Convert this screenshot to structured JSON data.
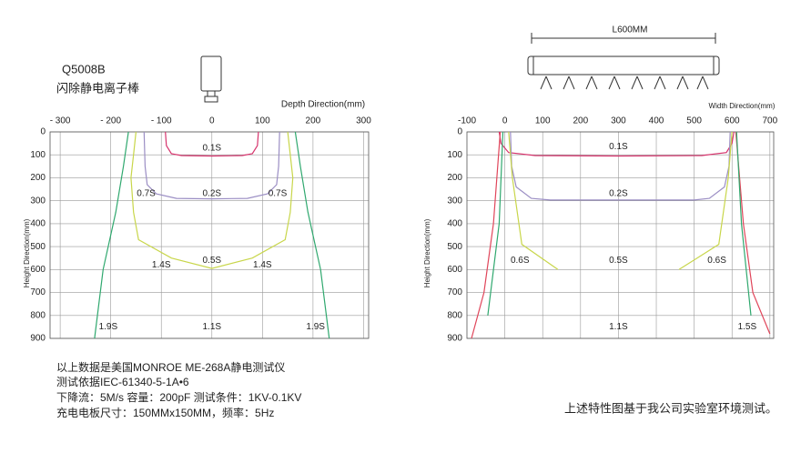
{
  "product": {
    "model": "Q5008B",
    "name": "闪除静电离子棒"
  },
  "dimension": "L600MM",
  "notes": [
    "以上数据是美国MONROE ME-268A静电测试仪",
    "测试依据IEC-61340-5-1A•6",
    "下降流：5M/s 容量：200pF 测试条件：1KV-0.1KV",
    "充电电板尺寸：150MMx150MM，频率：5Hz"
  ],
  "footer": "上述特性图基于我公司实验室环境测试。",
  "chart_data": [
    {
      "type": "line",
      "xlabel": "Depth Direction(mm)",
      "ylabel": "Height Direction(mm)",
      "xlim": [
        -320,
        310
      ],
      "xticks": [
        {
          "value": -300,
          "label": "- 300"
        },
        {
          "value": -200,
          "label": "- 200"
        },
        {
          "value": -100,
          "label": "- 100"
        },
        0,
        100,
        200,
        300
      ],
      "ylim": [
        900,
        0
      ],
      "yticks": [
        0,
        100,
        200,
        300,
        400,
        500,
        600,
        700,
        800,
        900
      ],
      "grid": true,
      "series": [
        {
          "color": "#d6336c",
          "x": [
            -92,
            -90,
            -80,
            -60,
            0,
            60,
            80,
            90,
            92
          ],
          "values": [
            0,
            60,
            95,
            103,
            105,
            103,
            95,
            60,
            0
          ]
        },
        {
          "color": "#9b8ec4",
          "x": [
            -134,
            -132,
            -128,
            -110,
            -70,
            0,
            70,
            110,
            128,
            132,
            134
          ],
          "values": [
            0,
            150,
            230,
            270,
            290,
            292,
            290,
            270,
            230,
            150,
            0
          ]
        },
        {
          "color": "#c8d64a",
          "x": [
            -150,
            -155,
            -160,
            -155,
            -145,
            -80,
            0,
            80,
            145,
            155,
            160,
            155,
            150
          ],
          "values": [
            0,
            100,
            200,
            350,
            470,
            550,
            595,
            550,
            470,
            350,
            200,
            100,
            0
          ]
        },
        {
          "color": "#2fa86e",
          "x": [
            -165,
            -175,
            -190,
            -215,
            -232
          ],
          "values": [
            0,
            150,
            350,
            600,
            900
          ]
        },
        {
          "color": "#2fa86e",
          "x": [
            165,
            175,
            190,
            215,
            232
          ],
          "values": [
            0,
            150,
            350,
            600,
            900
          ]
        }
      ],
      "annotations": [
        {
          "text": "0.1S",
          "x": 0,
          "y": 70
        },
        {
          "text": "0.7S",
          "x": -130,
          "y": 270
        },
        {
          "text": "0.2S",
          "x": 0,
          "y": 270
        },
        {
          "text": "0.7S",
          "x": 130,
          "y": 270
        },
        {
          "text": "1.4S",
          "x": -100,
          "y": 580
        },
        {
          "text": "0.5S",
          "x": 0,
          "y": 560
        },
        {
          "text": "1.4S",
          "x": 100,
          "y": 580
        },
        {
          "text": "1.9S",
          "x": -205,
          "y": 850
        },
        {
          "text": "1.1S",
          "x": 0,
          "y": 850
        },
        {
          "text": "1.9S",
          "x": 205,
          "y": 850
        }
      ]
    },
    {
      "type": "line",
      "xlabel": "Width Direction(mm)",
      "ylabel": "Height Direction(mm)",
      "xlim": [
        -100,
        710
      ],
      "xticks": [
        -100,
        0,
        100,
        200,
        300,
        400,
        500,
        600,
        700
      ],
      "ylim": [
        900,
        0
      ],
      "yticks": [
        0,
        100,
        200,
        300,
        400,
        500,
        600,
        700,
        800,
        900
      ],
      "grid": true,
      "series": [
        {
          "color": "#d6336c",
          "x": [
            -15,
            -10,
            10,
            80,
            300,
            520,
            585,
            600,
            605
          ],
          "values": [
            0,
            50,
            90,
            103,
            105,
            103,
            90,
            50,
            0
          ]
        },
        {
          "color": "#9b8ec4",
          "x": [
            15,
            18,
            30,
            70,
            120,
            500,
            540,
            580,
            592,
            595
          ],
          "values": [
            0,
            150,
            240,
            290,
            297,
            297,
            290,
            240,
            150,
            0
          ]
        },
        {
          "color": "#c8d64a",
          "x": [
            10,
            20,
            45,
            140
          ],
          "values": [
            0,
            200,
            490,
            600
          ]
        },
        {
          "color": "#c8d64a",
          "x": [
            600,
            590,
            565,
            460
          ],
          "values": [
            0,
            200,
            490,
            600
          ]
        },
        {
          "color": "#e0455a",
          "x": [
            -12,
            -30,
            -55,
            -88
          ],
          "values": [
            0,
            400,
            700,
            900
          ]
        },
        {
          "color": "#e0455a",
          "x": [
            610,
            630,
            655,
            700
          ],
          "values": [
            0,
            400,
            700,
            880
          ]
        },
        {
          "color": "#2fa86e",
          "x": [
            -5,
            -15,
            -45
          ],
          "values": [
            0,
            400,
            800
          ]
        },
        {
          "color": "#2fa86e",
          "x": [
            612,
            625,
            650
          ],
          "values": [
            0,
            400,
            800
          ]
        }
      ],
      "annotations": [
        {
          "text": "0.1S",
          "x": 300,
          "y": 65
        },
        {
          "text": "0.2S",
          "x": 300,
          "y": 270
        },
        {
          "text": "0.6S",
          "x": 40,
          "y": 560
        },
        {
          "text": "0.5S",
          "x": 300,
          "y": 560
        },
        {
          "text": "0.6S",
          "x": 560,
          "y": 560
        },
        {
          "text": "1.1S",
          "x": 300,
          "y": 850
        },
        {
          "text": "1.5S",
          "x": 640,
          "y": 850
        }
      ]
    }
  ]
}
